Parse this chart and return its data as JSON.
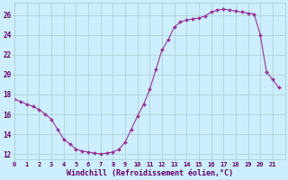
{
  "x_hours": [
    0,
    0.5,
    1,
    1.5,
    2,
    2.5,
    3,
    3.5,
    4,
    4.5,
    5,
    5.5,
    6,
    6.5,
    7,
    7.5,
    8,
    8.5,
    9,
    9.5,
    10,
    10.5,
    11,
    11.5,
    12,
    12.5,
    13,
    13.5,
    14,
    14.5,
    15,
    15.5,
    16,
    16.5,
    17,
    17.5,
    18,
    18.5,
    19,
    19.5,
    20,
    20.5,
    21,
    21.5
  ],
  "y_vals": [
    17.5,
    17.3,
    17.0,
    16.8,
    16.5,
    16.0,
    15.5,
    14.5,
    13.5,
    13.0,
    12.5,
    12.3,
    12.2,
    12.1,
    12.0,
    12.1,
    12.2,
    12.5,
    13.2,
    14.5,
    15.8,
    17.0,
    18.5,
    20.5,
    22.5,
    23.5,
    24.8,
    25.3,
    25.5,
    25.6,
    25.7,
    25.9,
    26.3,
    26.5,
    26.6,
    26.5,
    26.4,
    26.3,
    26.2,
    26.1,
    24.0,
    20.3,
    19.5,
    18.7
  ],
  "line_color": "#993399",
  "marker": "D",
  "marker_size": 2.0,
  "bg_color": "#cceeff",
  "grid_color": "#aacccc",
  "xlabel": "Windchill (Refroidissement éolien,°C)",
  "xlabel_color": "#660066",
  "tick_color": "#660066",
  "xlim": [
    0,
    22
  ],
  "ylim": [
    11.5,
    27.2
  ],
  "yticks": [
    12,
    14,
    16,
    18,
    20,
    22,
    24,
    26
  ],
  "xticks": [
    0,
    1,
    2,
    3,
    4,
    5,
    6,
    7,
    8,
    9,
    10,
    11,
    12,
    13,
    14,
    15,
    16,
    17,
    18,
    19,
    20,
    21
  ],
  "figsize": [
    3.2,
    2.0
  ],
  "dpi": 100
}
